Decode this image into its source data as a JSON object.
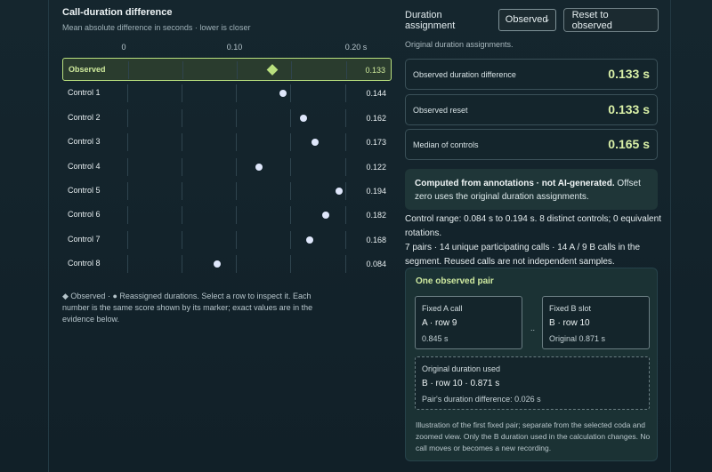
{
  "chart_data": {
    "type": "scatter",
    "title": "Call-duration difference",
    "subtitle": "Mean absolute difference in seconds · lower is closer",
    "x_ticks": [
      "0",
      "0.10",
      "0.20 s"
    ],
    "x_tick_values": [
      0,
      0.1,
      0.2
    ],
    "xlim": [
      0,
      0.2
    ],
    "categories": [
      "Observed",
      "Control 1",
      "Control 2",
      "Control 3",
      "Control 4",
      "Control 5",
      "Control 6",
      "Control 7",
      "Control 8"
    ],
    "values": [
      0.133,
      0.144,
      0.162,
      0.173,
      0.122,
      0.194,
      0.182,
      0.168,
      0.084
    ],
    "value_labels": [
      "0.133",
      "0.144",
      "0.162",
      "0.173",
      "0.122",
      "0.194",
      "0.182",
      "0.168",
      "0.084"
    ],
    "markers": [
      "diamond",
      "dot",
      "dot",
      "dot",
      "dot",
      "dot",
      "dot",
      "dot",
      "dot"
    ],
    "selected_row": "Observed",
    "grid": true,
    "colors": {
      "observed": "#b9e07e",
      "control": "#dfe7fb"
    }
  },
  "legend_note": "◆ Observed · ● Reassigned durations. Select a row to inspect it. Each number is the same score shown by its marker; exact values are in the evidence below.",
  "controls": {
    "duration_label": "Duration assignment",
    "select_value": "Observed",
    "reset_label": "Reset to observed",
    "original_note": "Original duration assignments."
  },
  "metrics": [
    {
      "label": "Observed duration difference",
      "value": "0.133 s"
    },
    {
      "label": "Observed reset",
      "value": "0.133 s"
    },
    {
      "label": "Median of controls",
      "value": "0.165 s"
    }
  ],
  "computed": {
    "bold": "Computed from annotations · not AI-generated.",
    "rest": " Offset zero uses the original duration assignments."
  },
  "range_lines": [
    "Control range: 0.084 s to 0.194 s. 8 distinct controls; 0 equivalent rotations.",
    "7 pairs · 14 unique participating calls · 14 A / 9 B calls in the segment. Reused calls are not independent samples."
  ],
  "pair": {
    "title": "One observed pair",
    "a_head": "Fixed A call",
    "a_main": "A · row 9",
    "a_sub": "0.845 s",
    "sep": "..",
    "b_head": "Fixed B slot",
    "b_main": "B · row 10",
    "b_sub": "Original 0.871 s",
    "orig_head": "Original duration used",
    "orig_main": "B · row 10 · 0.871 s",
    "orig_sub": "Pair's duration difference: 0.026 s",
    "illustration": "Illustration of the first fixed pair; separate from the selected coda and zoomed view. Only the B duration used in the calculation changes. No call moves or becomes a new recording."
  },
  "icons": {
    "select_chevron": "chevron-down-icon"
  }
}
